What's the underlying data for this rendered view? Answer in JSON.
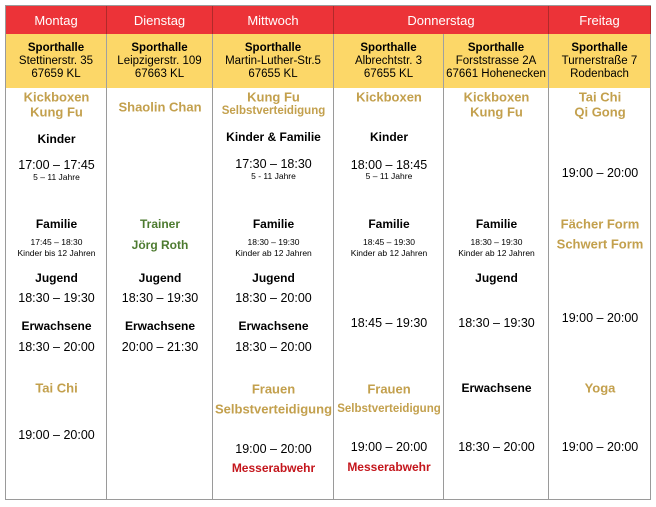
{
  "days": [
    "Montag",
    "Dienstag",
    "Mittwoch",
    "Donnerstag",
    "Freitag"
  ],
  "colors": {
    "header": "#ec3338",
    "venue": "#fcd768",
    "sport": "#c3a04d",
    "trainer": "#4d7b30",
    "warning": "#c4161c"
  },
  "columns": [
    {
      "venue": [
        "Sporthalle",
        "Stettinerstr. 35",
        "67659 KL"
      ],
      "items": [
        {
          "text": "Kickboxen",
          "kind": "sport"
        },
        {
          "text": "Kung Fu",
          "kind": "sport"
        },
        {
          "text": "Kinder",
          "kind": "group"
        },
        {
          "text": "17:00 – 17:45",
          "kind": "time"
        },
        {
          "text": "5 – 11 Jahre",
          "kind": "note"
        },
        {
          "text": "Familie",
          "kind": "group"
        },
        {
          "text": "17:45 – 18:30",
          "kind": "note"
        },
        {
          "text": "Kinder bis 12 Jahren",
          "kind": "note"
        },
        {
          "text": "Jugend",
          "kind": "group"
        },
        {
          "text": "18:30 – 19:30",
          "kind": "time"
        },
        {
          "text": "Erwachsene",
          "kind": "group"
        },
        {
          "text": "18:30 – 20:00",
          "kind": "time"
        },
        {
          "text": "Tai Chi",
          "kind": "sport"
        },
        {
          "text": "19:00 – 20:00",
          "kind": "time"
        }
      ]
    },
    {
      "venue": [
        "Sporthalle",
        "Leipzigerstr. 109",
        "67663 KL"
      ],
      "items": [
        {
          "text": "Shaolin Chan",
          "kind": "sport"
        },
        {
          "text": "Trainer",
          "kind": "trainer"
        },
        {
          "text": "Jörg Roth",
          "kind": "trainer"
        },
        {
          "text": "Jugend",
          "kind": "group"
        },
        {
          "text": "18:30 – 19:30",
          "kind": "time"
        },
        {
          "text": "Erwachsene",
          "kind": "group"
        },
        {
          "text": "20:00 – 21:30",
          "kind": "time"
        }
      ]
    },
    {
      "venue": [
        "Sporthalle",
        "Martin-Luther-Str.5",
        "67655 KL"
      ],
      "items": [
        {
          "text": "Kung Fu",
          "kind": "sport"
        },
        {
          "text": "Selbstverteidigung",
          "kind": "sport-sm"
        },
        {
          "text": "Kinder & Familie",
          "kind": "group"
        },
        {
          "text": "17:30 – 18:30",
          "kind": "time"
        },
        {
          "text": "5 - 11 Jahre",
          "kind": "note"
        },
        {
          "text": "Familie",
          "kind": "group"
        },
        {
          "text": "18:30 – 19:30",
          "kind": "note"
        },
        {
          "text": "Kinder ab 12 Jahren",
          "kind": "note"
        },
        {
          "text": "Jugend",
          "kind": "group"
        },
        {
          "text": "18:30 – 20:00",
          "kind": "time"
        },
        {
          "text": "Erwachsene",
          "kind": "group"
        },
        {
          "text": "18:30 – 20:00",
          "kind": "time"
        },
        {
          "text": "Frauen",
          "kind": "sport"
        },
        {
          "text": "Selbstverteidigung",
          "kind": "sport"
        },
        {
          "text": "19:00 – 20:00",
          "kind": "time"
        },
        {
          "text": "Messerabwehr",
          "kind": "warning"
        }
      ]
    },
    {
      "venue": [
        "Sporthalle",
        "Albrechtstr. 3",
        "67655 KL"
      ],
      "items": [
        {
          "text": "Kickboxen",
          "kind": "sport"
        },
        {
          "text": "Kinder",
          "kind": "group"
        },
        {
          "text": "18:00 – 18:45",
          "kind": "time"
        },
        {
          "text": "5 – 11 Jahre",
          "kind": "note"
        },
        {
          "text": "Familie",
          "kind": "group"
        },
        {
          "text": "18:45 – 19:30",
          "kind": "note"
        },
        {
          "text": "Kinder ab 12 Jahren",
          "kind": "note"
        },
        {
          "text": "18:45 – 19:30",
          "kind": "time"
        },
        {
          "text": "Frauen",
          "kind": "sport"
        },
        {
          "text": "Selbstverteidigung",
          "kind": "sport-sm"
        },
        {
          "text": "19:00 – 20:00",
          "kind": "time"
        },
        {
          "text": "Messerabwehr",
          "kind": "warning"
        }
      ]
    },
    {
      "venue": [
        "Sporthalle",
        "Forststrasse 2A",
        "67661 Hohenecken"
      ],
      "items": [
        {
          "text": "Kickboxen",
          "kind": "sport"
        },
        {
          "text": "Kung Fu",
          "kind": "sport"
        },
        {
          "text": "Familie",
          "kind": "group"
        },
        {
          "text": "18:30 – 19:30",
          "kind": "note"
        },
        {
          "text": "Kinder ab 12 Jahren",
          "kind": "note"
        },
        {
          "text": "Jugend",
          "kind": "group"
        },
        {
          "text": "18:30 – 19:30",
          "kind": "time"
        },
        {
          "text": "Erwachsene",
          "kind": "group"
        },
        {
          "text": "18:30 – 20:00",
          "kind": "time"
        }
      ]
    },
    {
      "venue": [
        "Sporthalle",
        "Turnerstraße 7",
        "Rodenbach"
      ],
      "items": [
        {
          "text": "Tai Chi",
          "kind": "sport"
        },
        {
          "text": "Qi Gong",
          "kind": "sport"
        },
        {
          "text": "19:00 – 20:00",
          "kind": "time"
        },
        {
          "text": "Fächer Form",
          "kind": "sport"
        },
        {
          "text": "Schwert Form",
          "kind": "sport"
        },
        {
          "text": "19:00 – 20:00",
          "kind": "time"
        },
        {
          "text": "Yoga",
          "kind": "sport"
        },
        {
          "text": "19:00 – 20:00",
          "kind": "time"
        }
      ]
    }
  ]
}
